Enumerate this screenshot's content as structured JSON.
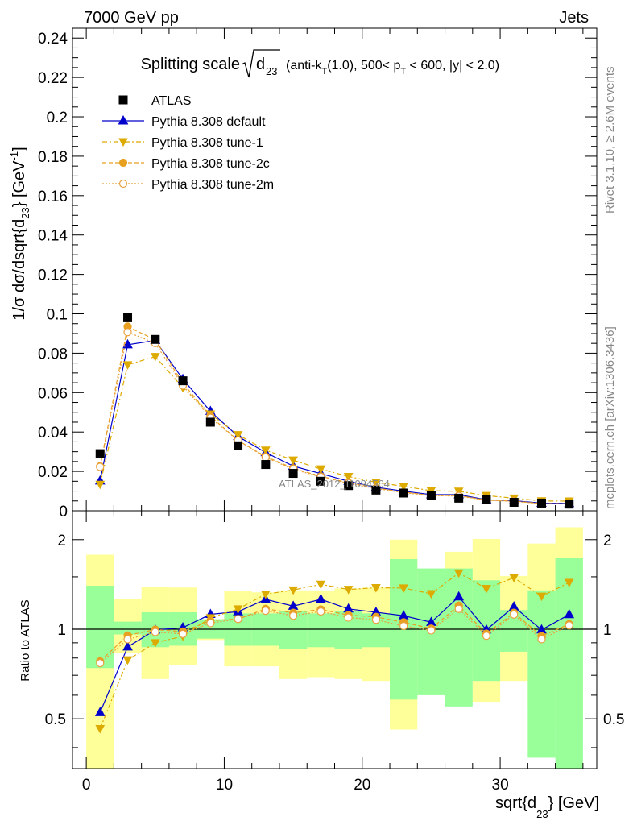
{
  "header": {
    "energy_label": "7000 GeV pp",
    "category_label": "Jets"
  },
  "title": {
    "main": "Splitting scale",
    "symbol": "d",
    "symbol_sub": "23",
    "cuts_a": "(anti-k",
    "cuts_sub": "T",
    "cuts_b": "(1.0), 500< p",
    "cuts_sub2": "T",
    "cuts_c": " < 600, |y| < 2.0)"
  },
  "side_labels": {
    "rivet": "Rivet 3.1.10, ≥ 2.6M events",
    "mcplots": "mcplots.cern.ch [arXiv:1306.3436]"
  },
  "watermark": "ATLAS_2012_I1094564",
  "axes": {
    "ylabel_main_a": "1/σ dσ/dsqrt{d",
    "ylabel_main_sub": "23",
    "ylabel_main_b": "} [GeV",
    "ylabel_main_sup": "-1",
    "ylabel_main_c": "]",
    "ylabel_ratio": "Ratio to ATLAS",
    "xlabel_a": "sqrt{d",
    "xlabel_sub": "23",
    "xlabel_b": "} [GeV]"
  },
  "colors": {
    "data": "#000000",
    "default": "#0000cc",
    "tune1": "#ddaa00",
    "tune2c": "#e8a020",
    "tune2m": "#e8a040",
    "band_inner": "#99ff99",
    "band_outer": "#ffff99"
  },
  "chart_data": [
    {
      "type": "scatter",
      "panel": "main",
      "xlim": [
        -1,
        37
      ],
      "ylim": [
        0,
        0.245
      ],
      "yticks": [
        0,
        0.02,
        0.04,
        0.06,
        0.08,
        0.1,
        0.12,
        0.14,
        0.16,
        0.18,
        0.2,
        0.22,
        0.24
      ],
      "ytick_labels": [
        "0",
        "0.02",
        "0.04",
        "0.06",
        "0.08",
        "0.1",
        "0.12",
        "0.14",
        "0.16",
        "0.18",
        "0.2",
        "0.22",
        "0.24"
      ],
      "x": [
        1,
        3,
        5,
        7,
        9,
        11,
        13,
        15,
        17,
        19,
        21,
        23,
        25,
        27,
        29,
        31,
        33,
        35
      ],
      "series": [
        {
          "name": "ATLAS",
          "style": "data",
          "values": [
            0.029,
            0.098,
            0.087,
            0.066,
            0.045,
            0.033,
            0.0235,
            0.019,
            0.015,
            0.0128,
            0.0105,
            0.009,
            0.0078,
            0.0064,
            0.0056,
            0.0043,
            0.0039,
            0.0034
          ]
        },
        {
          "name": "Pythia 8.308 default",
          "style": "default",
          "values": [
            0.0152,
            0.0843,
            0.0865,
            0.0668,
            0.0505,
            0.0378,
            0.0296,
            0.0227,
            0.0189,
            0.015,
            0.0119,
            0.01,
            0.0082,
            0.0082,
            0.0056,
            0.0051,
            0.0039,
            0.0038
          ]
        },
        {
          "name": "Pythia 8.308 tune-1",
          "style": "tune1",
          "values": [
            0.0134,
            0.0741,
            0.0783,
            0.0625,
            0.0491,
            0.0386,
            0.0308,
            0.0257,
            0.0212,
            0.0174,
            0.0145,
            0.0124,
            0.0102,
            0.0099,
            0.0077,
            0.0064,
            0.005,
            0.0049
          ]
        },
        {
          "name": "Pythia 8.308 tune-2c",
          "style": "tune2c",
          "values": [
            0.0226,
            0.0935,
            0.0868,
            0.0648,
            0.0481,
            0.0357,
            0.0275,
            0.0216,
            0.0175,
            0.0143,
            0.0116,
            0.0095,
            0.0078,
            0.0077,
            0.0054,
            0.0049,
            0.0037,
            0.0035
          ]
        },
        {
          "name": "Pythia 8.308 tune-2m",
          "style": "tune2m",
          "values": [
            0.0223,
            0.0907,
            0.0851,
            0.0636,
            0.0472,
            0.0357,
            0.0271,
            0.0211,
            0.0172,
            0.014,
            0.0113,
            0.0092,
            0.0077,
            0.0075,
            0.0053,
            0.0048,
            0.0036,
            0.0035
          ]
        }
      ]
    },
    {
      "type": "line",
      "panel": "ratio",
      "xlim": [
        -1,
        37
      ],
      "ylim": [
        0.34,
        2.5
      ],
      "log_y": true,
      "yticks": [
        0.5,
        1,
        2
      ],
      "ytick_labels": [
        "0.5",
        "1",
        "2"
      ],
      "xticks": [
        0,
        10,
        20,
        30
      ],
      "xtick_labels": [
        "0",
        "10",
        "20",
        "30"
      ],
      "x": [
        1,
        3,
        5,
        7,
        9,
        11,
        13,
        15,
        17,
        19,
        21,
        23,
        25,
        27,
        29,
        31,
        33,
        35
      ],
      "bin_edges": [
        0,
        2,
        4,
        6,
        8,
        10,
        12,
        14,
        16,
        18,
        20,
        22,
        24,
        26,
        28,
        30,
        32,
        34,
        36
      ],
      "band_inner": [
        [
          0.74,
          1.4
        ],
        [
          0.96,
          1.06
        ],
        [
          0.87,
          1.14
        ],
        [
          0.88,
          1.14
        ],
        [
          0.93,
          1.08
        ],
        [
          0.88,
          1.13
        ],
        [
          0.88,
          1.13
        ],
        [
          0.86,
          1.15
        ],
        [
          0.87,
          1.13
        ],
        [
          0.86,
          1.15
        ],
        [
          0.87,
          1.13
        ],
        [
          0.58,
          1.72
        ],
        [
          0.6,
          1.6
        ],
        [
          0.55,
          1.6
        ],
        [
          0.67,
          1.46
        ],
        [
          0.84,
          1.16
        ],
        [
          0.37,
          1.35
        ],
        [
          0.33,
          1.74
        ]
      ],
      "band_outer": [
        [
          0.33,
          1.78
        ],
        [
          0.83,
          1.26
        ],
        [
          0.68,
          1.39
        ],
        [
          0.76,
          1.38
        ],
        [
          0.92,
          1.08
        ],
        [
          0.75,
          1.34
        ],
        [
          0.75,
          1.33
        ],
        [
          0.68,
          1.35
        ],
        [
          0.69,
          1.35
        ],
        [
          0.68,
          1.37
        ],
        [
          0.67,
          1.38
        ],
        [
          0.46,
          2.0
        ],
        [
          0.78,
          1.5
        ],
        [
          0.69,
          1.82
        ],
        [
          0.57,
          2.01
        ],
        [
          0.67,
          1.51
        ],
        [
          0.55,
          1.94
        ],
        [
          0.47,
          2.2
        ]
      ],
      "series": [
        {
          "name": "Pythia 8.308 default",
          "style": "default",
          "values": [
            0.525,
            0.872,
            0.994,
            1.012,
            1.122,
            1.145,
            1.26,
            1.195,
            1.26,
            1.17,
            1.14,
            1.11,
            1.055,
            1.285,
            0.995,
            1.19,
            0.995,
            1.12
          ]
        },
        {
          "name": "Pythia 8.308 tune-1",
          "style": "tune1",
          "values": [
            0.463,
            0.788,
            0.9,
            0.947,
            1.092,
            1.169,
            1.311,
            1.354,
            1.415,
            1.36,
            1.378,
            1.375,
            1.315,
            1.545,
            1.37,
            1.49,
            1.29,
            1.435
          ]
        },
        {
          "name": "Pythia 8.308 tune-2c",
          "style": "tune2c",
          "values": [
            0.78,
            0.953,
            0.997,
            0.982,
            1.068,
            1.082,
            1.17,
            1.135,
            1.165,
            1.115,
            1.1,
            1.055,
            1.005,
            1.2,
            0.966,
            1.135,
            0.948,
            1.04
          ]
        },
        {
          "name": "Pythia 8.308 tune-2m",
          "style": "tune2m",
          "values": [
            0.769,
            0.925,
            0.978,
            0.964,
            1.048,
            1.082,
            1.153,
            1.11,
            1.147,
            1.094,
            1.076,
            1.025,
            0.99,
            1.17,
            0.95,
            1.12,
            0.925,
            1.03
          ]
        }
      ]
    }
  ]
}
